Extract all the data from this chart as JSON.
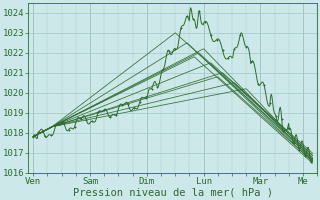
{
  "background_color": "#cce8e8",
  "grid_color": "#aacccc",
  "line_color": "#2d6b2d",
  "xlabel": "Pression niveau de la mer( hPa )",
  "xlabel_fontsize": 7.5,
  "tick_fontsize": 6.5,
  "ylim": [
    1016,
    1024.5
  ],
  "yticks": [
    1016,
    1017,
    1018,
    1019,
    1020,
    1021,
    1022,
    1023,
    1024
  ],
  "day_labels": [
    "Ven",
    "Sam",
    "Dim",
    "Lun",
    "Mar",
    "Me"
  ],
  "day_positions": [
    0,
    24,
    48,
    72,
    96,
    114
  ],
  "xlim": [
    -2,
    120
  ]
}
